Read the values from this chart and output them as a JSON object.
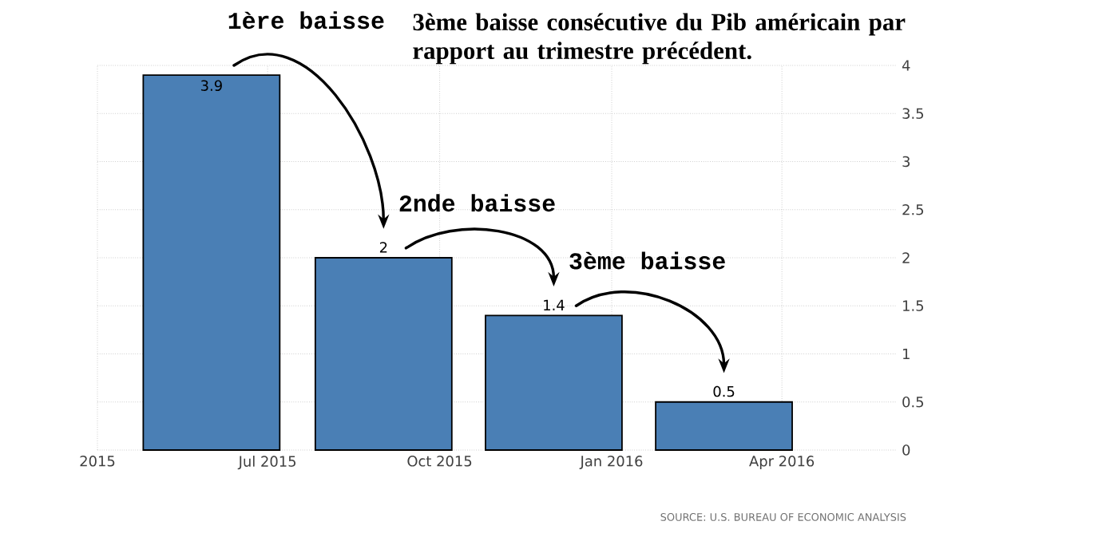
{
  "chart_data": {
    "type": "bar",
    "title": "3ème baisse consécutive du Pib américain par rapport au trimestre précédent.",
    "x": [
      "2015-06-01",
      "2015-09-01",
      "2015-12-01",
      "2016-03-01"
    ],
    "values": [
      3.9,
      2,
      1.4,
      0.5
    ],
    "color": "#4a7fb5",
    "data_labels": true,
    "grid": true,
    "xlim": [
      "2015-04-01",
      "2016-06-01"
    ],
    "xticks": [
      {
        "value": "2015-04-01",
        "label": "2015"
      },
      {
        "value": "2015-07-01",
        "label": "Jul 2015"
      },
      {
        "value": "2015-10-01",
        "label": "Oct 2015"
      },
      {
        "value": "2016-01-01",
        "label": "Jan 2016"
      },
      {
        "value": "2016-04-01",
        "label": "Apr 2016"
      }
    ],
    "ylim": [
      0,
      4
    ],
    "yticks": [
      0,
      0.5,
      1,
      1.5,
      2,
      2.5,
      3,
      3.5,
      4
    ],
    "annotations": [
      "1ère baisse",
      "2nde baisse",
      "3ème baisse",
      "SOURCE: U.S. BUREAU OF ECONOMIC ANALYSIS"
    ]
  }
}
